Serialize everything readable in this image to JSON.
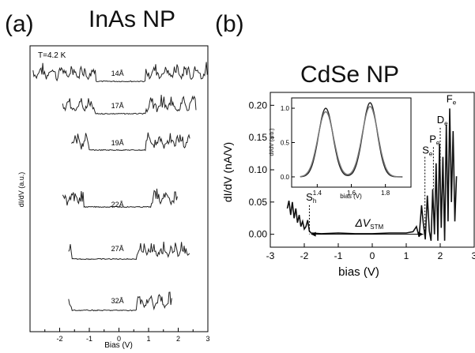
{
  "panels": {
    "a": {
      "label": "(a)",
      "title": "InAs NP"
    },
    "b": {
      "label": "(b)",
      "title": "CdSe NP"
    }
  },
  "chart_data": [
    {
      "type": "line",
      "panel": "a",
      "title": "InAs NP",
      "xlabel": "Bias (V)",
      "ylabel": "dI/dV (a.u.)",
      "xlim": [
        -3,
        3
      ],
      "xticks": [
        "-2",
        "-1",
        "0",
        "1",
        "2",
        "3"
      ],
      "temperature_label": "T=4.2 K",
      "grid": false,
      "series": [
        {
          "name": "14Å",
          "gap_left": -0.8,
          "gap_right": 0.9,
          "x_start": -2.9,
          "x_end": 3.0
        },
        {
          "name": "17Å",
          "gap_left": -0.8,
          "gap_right": 0.9,
          "x_start": -1.9,
          "x_end": 2.6
        },
        {
          "name": "19Å",
          "gap_left": -1.0,
          "gap_right": 0.9,
          "x_start": -1.6,
          "x_end": 2.4
        },
        {
          "name": "22Å",
          "gap_left": -1.2,
          "gap_right": 1.1,
          "x_start": -1.9,
          "x_end": 2.0
        },
        {
          "name": "27Å",
          "gap_left": -1.6,
          "gap_right": 0.6,
          "x_start": -1.7,
          "x_end": 2.4
        },
        {
          "name": "32Å",
          "gap_left": -1.6,
          "gap_right": 0.6,
          "x_start": -1.7,
          "x_end": 1.8
        }
      ]
    },
    {
      "type": "line",
      "panel": "b",
      "title": "CdSe NP",
      "xlabel": "bias (V)",
      "ylabel": "dI/dV (nA/V)",
      "xlim": [
        -3,
        3
      ],
      "ylim": [
        -0.02,
        0.22
      ],
      "xticks": [
        -3,
        -2,
        -1,
        0,
        1,
        2,
        3
      ],
      "yticks": [
        0.0,
        0.05,
        0.1,
        0.15,
        0.2
      ],
      "ytick_labels": [
        "0.00",
        "0.05",
        "0.10",
        "0.15",
        "0.20"
      ],
      "series": [
        {
          "name": "dI/dV",
          "x": [
            -2.5,
            -2.45,
            -2.4,
            -2.35,
            -2.3,
            -2.25,
            -2.2,
            -2.15,
            -2.1,
            -2.05,
            -2.0,
            -1.95,
            -1.9,
            -1.85,
            -1.8,
            -1.5,
            -1.0,
            -0.5,
            0.0,
            0.5,
            1.0,
            1.2,
            1.3,
            1.38,
            1.45,
            1.5,
            1.56,
            1.62,
            1.68,
            1.73,
            1.78,
            1.83,
            1.88,
            1.93,
            1.98,
            2.03,
            2.08,
            2.13,
            2.18,
            2.23,
            2.28,
            2.33,
            2.38,
            2.43,
            2.48
          ],
          "y": [
            0.04,
            0.052,
            0.03,
            0.05,
            0.025,
            0.04,
            0.018,
            0.03,
            0.012,
            0.02,
            0.008,
            0.012,
            0.022,
            0.005,
            0.002,
            0.001,
            0.002,
            0.001,
            0.001,
            0.002,
            0.002,
            0.004,
            0.012,
            -0.004,
            0.045,
            0.018,
            -0.008,
            0.06,
            0.005,
            -0.01,
            0.07,
            0.0,
            0.11,
            -0.01,
            0.14,
            0.01,
            0.12,
            -0.01,
            0.17,
            0.02,
            0.195,
            0.05,
            0.16,
            0.02,
            0.09
          ]
        }
      ],
      "annotations": [
        {
          "text": "S",
          "sub": "h",
          "x": -1.85
        },
        {
          "text": "S",
          "sub": "e",
          "x": 1.6
        },
        {
          "text": "P",
          "sub": "e",
          "x": 1.8
        },
        {
          "text": "D",
          "sub": "e",
          "x": 2.0
        },
        {
          "text": "F",
          "sub": "e",
          "x": 2.3
        },
        {
          "text": "ΔV",
          "sub": "STM",
          "x": 0.0,
          "y": 0.0
        }
      ],
      "inset": {
        "xlabel": "bias (V)",
        "ylabel": "dI/dV (arb.)",
        "xlim": [
          1.25,
          1.95
        ],
        "ylim": [
          -0.15,
          1.15
        ],
        "xticks": [
          1.4,
          1.6,
          1.8
        ],
        "xtick_labels": [
          "1.4",
          "1.6",
          "1.8"
        ],
        "yticks": [
          0.0,
          0.5,
          1.0
        ],
        "ytick_labels": [
          "0.0",
          "0.5",
          "1.0"
        ],
        "peaks": [
          {
            "center": 1.45,
            "height": 1.0,
            "width": 0.06
          },
          {
            "center": 1.71,
            "height": 1.08,
            "width": 0.06
          }
        ]
      }
    }
  ]
}
